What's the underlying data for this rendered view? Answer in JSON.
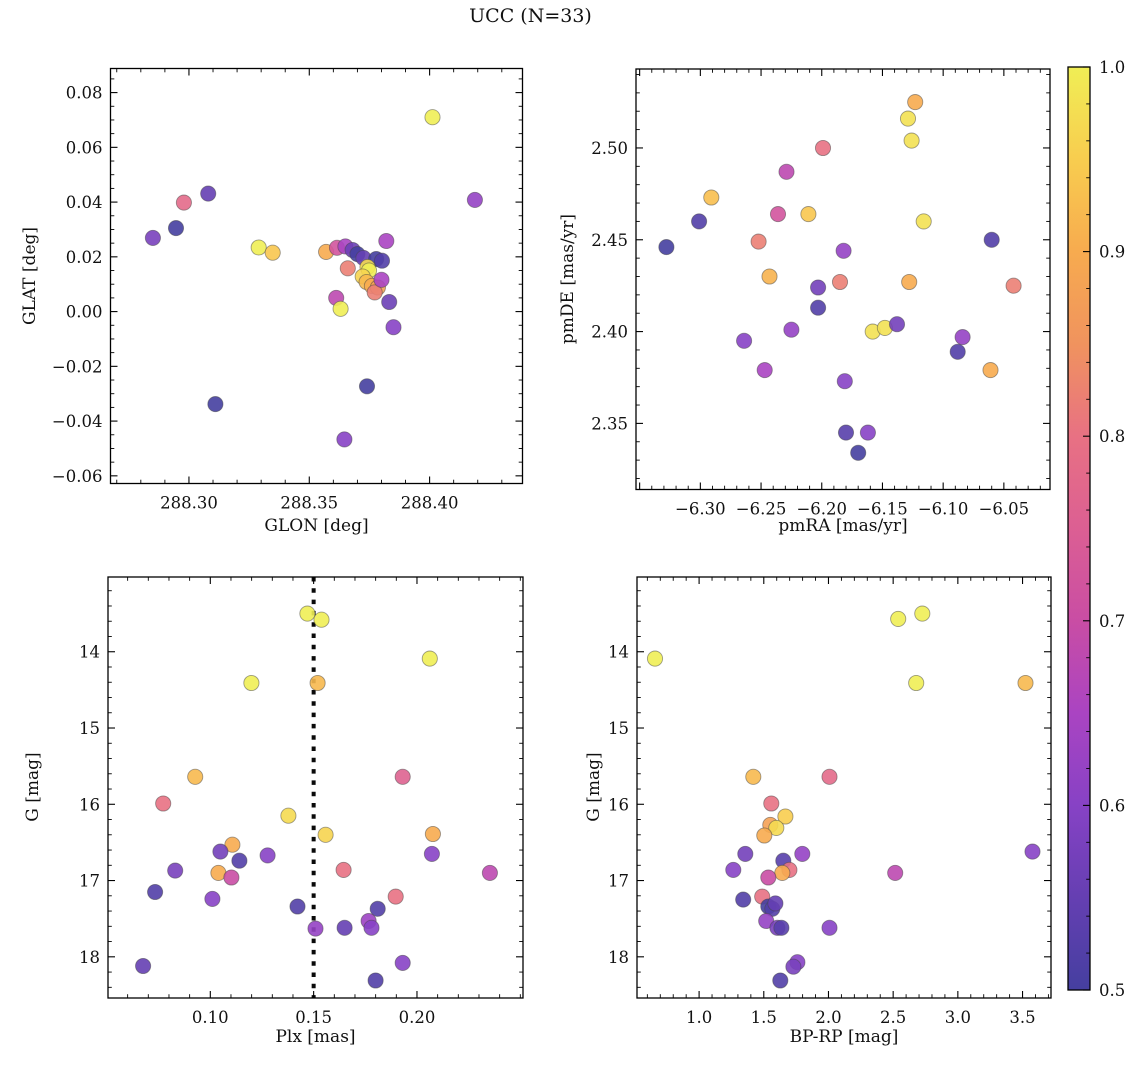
{
  "title": "UCC (N=33)",
  "colorbar": {
    "vmin": 0.5,
    "vmax": 1.0,
    "tick_labels": [
      "1.0",
      "0.9",
      "0.8",
      "0.7",
      "0.6",
      "0.5"
    ],
    "tick_values": [
      1.0,
      0.9,
      0.8,
      0.7,
      0.6,
      0.5
    ],
    "minor_step": 0.02,
    "colormap_stops": [
      {
        "v": 0.5,
        "color": "#453fa0"
      },
      {
        "v": 0.55,
        "color": "#653fb2"
      },
      {
        "v": 0.6,
        "color": "#8742c5"
      },
      {
        "v": 0.65,
        "color": "#aa44c2"
      },
      {
        "v": 0.7,
        "color": "#c94da4"
      },
      {
        "v": 0.75,
        "color": "#dc5f93"
      },
      {
        "v": 0.8,
        "color": "#e87183"
      },
      {
        "v": 0.85,
        "color": "#f0935e"
      },
      {
        "v": 0.9,
        "color": "#f7ab4f"
      },
      {
        "v": 0.95,
        "color": "#f8cd4f"
      },
      {
        "v": 1.0,
        "color": "#f0ee55"
      }
    ]
  },
  "chart_data": [
    {
      "type": "scatter",
      "name": "position",
      "xlabel": "GLON [deg]",
      "ylabel": "GLAT [deg]",
      "xlim": [
        288.2674,
        288.4386
      ],
      "ylim": [
        -0.0628,
        0.0888
      ],
      "invert_y": false,
      "xticks": {
        "values": [
          288.3,
          288.35,
          288.4
        ],
        "labels": [
          "288.30",
          "288.35",
          "288.40"
        ],
        "minor_step": 0.01
      },
      "yticks": {
        "values": [
          -0.06,
          -0.04,
          -0.02,
          0.0,
          0.02,
          0.04,
          0.06,
          0.08
        ],
        "labels": [
          "−0.06",
          "−0.04",
          "−0.02",
          "0.00",
          "0.02",
          "0.04",
          "0.06",
          "0.08"
        ],
        "minor_step": 0.005
      },
      "points": [
        [
          288.285,
          0.0269,
          0.58
        ],
        [
          288.2946,
          0.0305,
          0.5
        ],
        [
          288.2979,
          0.0398,
          0.78
        ],
        [
          288.308,
          0.0431,
          0.55
        ],
        [
          288.311,
          -0.0338,
          0.5
        ],
        [
          288.329,
          0.0234,
          1.0
        ],
        [
          288.3348,
          0.0215,
          0.94
        ],
        [
          288.357,
          0.0218,
          0.9
        ],
        [
          288.3615,
          0.0233,
          0.72
        ],
        [
          288.365,
          0.0238,
          0.65
        ],
        [
          288.368,
          0.0225,
          0.56
        ],
        [
          288.37,
          0.021,
          0.5
        ],
        [
          288.3725,
          0.0196,
          0.55
        ],
        [
          288.3778,
          0.0192,
          0.5
        ],
        [
          288.3802,
          0.0186,
          0.52
        ],
        [
          288.366,
          0.0158,
          0.82
        ],
        [
          288.3742,
          0.0163,
          0.97
        ],
        [
          288.3748,
          0.015,
          1.0
        ],
        [
          288.3722,
          0.0128,
          0.96
        ],
        [
          288.3738,
          0.0108,
          0.92
        ],
        [
          288.376,
          0.0094,
          0.9
        ],
        [
          288.3785,
          0.0088,
          0.88
        ],
        [
          288.3772,
          0.007,
          0.82
        ],
        [
          288.38,
          0.0116,
          0.65
        ],
        [
          288.3832,
          0.0035,
          0.56
        ],
        [
          288.3612,
          0.005,
          0.68
        ],
        [
          288.363,
          0.001,
          1.0
        ],
        [
          288.385,
          -0.0057,
          0.6
        ],
        [
          288.382,
          0.0258,
          0.65
        ],
        [
          288.374,
          -0.0273,
          0.5
        ],
        [
          288.3646,
          -0.0467,
          0.6
        ],
        [
          288.4012,
          0.071,
          1.0
        ],
        [
          288.4188,
          0.0408,
          0.62
        ]
      ]
    },
    {
      "type": "scatter",
      "name": "proper-motion",
      "xlabel": "pmRA [mas/yr]",
      "ylabel": "pmDE [mas/yr]",
      "xlim": [
        -6.353,
        -6.012
      ],
      "ylim": [
        2.314,
        2.543
      ],
      "invert_y": false,
      "xticks": {
        "values": [
          -6.35,
          -6.3,
          -6.25,
          -6.2,
          -6.15,
          -6.1,
          -6.05
        ],
        "labels": [
          "",
          "−6.30",
          "−6.25",
          "−6.20",
          "−6.15",
          "−6.10",
          "−6.05"
        ],
        "minor_step": 0.01
      },
      "yticks": {
        "values": [
          2.35,
          2.4,
          2.45,
          2.5
        ],
        "labels": [
          "2.35",
          "2.40",
          "2.45",
          "2.50"
        ],
        "minor_step": 0.01
      },
      "points": [
        [
          -6.328,
          2.446,
          0.5
        ],
        [
          -6.301,
          2.46,
          0.52
        ],
        [
          -6.291,
          2.473,
          0.93
        ],
        [
          -6.264,
          2.395,
          0.6
        ],
        [
          -6.252,
          2.449,
          0.82
        ],
        [
          -6.247,
          2.379,
          0.65
        ],
        [
          -6.236,
          2.464,
          0.72
        ],
        [
          -6.229,
          2.487,
          0.68
        ],
        [
          -6.243,
          2.43,
          0.91
        ],
        [
          -6.211,
          2.464,
          0.94
        ],
        [
          -6.199,
          2.5,
          0.8
        ],
        [
          -6.203,
          2.424,
          0.57
        ],
        [
          -6.203,
          2.413,
          0.52
        ],
        [
          -6.225,
          2.401,
          0.62
        ],
        [
          -6.182,
          2.444,
          0.62
        ],
        [
          -6.185,
          2.427,
          0.82
        ],
        [
          -6.181,
          2.373,
          0.6
        ],
        [
          -6.18,
          2.345,
          0.53
        ],
        [
          -6.17,
          2.334,
          0.5
        ],
        [
          -6.162,
          2.345,
          0.6
        ],
        [
          -6.158,
          2.4,
          0.98
        ],
        [
          -6.148,
          2.402,
          0.98
        ],
        [
          -6.138,
          2.404,
          0.57
        ],
        [
          -6.123,
          2.525,
          0.9
        ],
        [
          -6.129,
          2.516,
          0.98
        ],
        [
          -6.126,
          2.504,
          0.98
        ],
        [
          -6.116,
          2.46,
          0.98
        ],
        [
          -6.128,
          2.427,
          0.9
        ],
        [
          -6.06,
          2.45,
          0.52
        ],
        [
          -6.084,
          2.397,
          0.62
        ],
        [
          -6.088,
          2.389,
          0.52
        ],
        [
          -6.061,
          2.379,
          0.9
        ],
        [
          -6.042,
          2.425,
          0.82
        ]
      ]
    },
    {
      "type": "scatter",
      "name": "parallax-magnitude",
      "xlabel": "Plx [mas]",
      "ylabel": "G [mag]",
      "xlim": [
        0.0505,
        0.2513
      ],
      "ylim": [
        13.02,
        18.54
      ],
      "invert_y": true,
      "vline": {
        "x": 0.15,
        "style": "dotted"
      },
      "xticks": {
        "values": [
          0.1,
          0.15,
          0.2
        ],
        "labels": [
          "0.10",
          "0.15",
          "0.20"
        ],
        "minor_step": 0.01
      },
      "yticks": {
        "values": [
          14,
          15,
          16,
          17,
          18
        ],
        "labels": [
          "14",
          "15",
          "16",
          "17",
          "18"
        ],
        "minor_step": 0.2
      },
      "points": [
        [
          0.147,
          13.5,
          1.0
        ],
        [
          0.1538,
          13.58,
          1.0
        ],
        [
          0.2062,
          14.09,
          1.0
        ],
        [
          0.1199,
          14.41,
          1.0
        ],
        [
          0.1519,
          14.41,
          0.92
        ],
        [
          0.0927,
          15.64,
          0.92
        ],
        [
          0.0772,
          15.99,
          0.8
        ],
        [
          0.1378,
          16.15,
          0.97
        ],
        [
          0.1558,
          16.4,
          0.96
        ],
        [
          0.1931,
          15.64,
          0.76
        ],
        [
          0.2077,
          16.39,
          0.9
        ],
        [
          0.1107,
          16.53,
          0.9
        ],
        [
          0.1049,
          16.62,
          0.57
        ],
        [
          0.1141,
          16.74,
          0.52
        ],
        [
          0.1277,
          16.67,
          0.6
        ],
        [
          0.2072,
          16.65,
          0.6
        ],
        [
          0.083,
          16.87,
          0.58
        ],
        [
          0.1039,
          16.9,
          0.9
        ],
        [
          0.1102,
          16.96,
          0.7
        ],
        [
          0.1645,
          16.86,
          0.8
        ],
        [
          0.2353,
          16.9,
          0.68
        ],
        [
          0.0733,
          17.15,
          0.52
        ],
        [
          0.101,
          17.24,
          0.6
        ],
        [
          0.1422,
          17.34,
          0.52
        ],
        [
          0.1897,
          17.21,
          0.8
        ],
        [
          0.181,
          17.37,
          0.52
        ],
        [
          0.1509,
          17.63,
          0.62
        ],
        [
          0.165,
          17.62,
          0.55
        ],
        [
          0.1766,
          17.53,
          0.63
        ],
        [
          0.178,
          17.62,
          0.6
        ],
        [
          0.0675,
          18.12,
          0.55
        ],
        [
          0.1931,
          18.08,
          0.6
        ],
        [
          0.18,
          18.31,
          0.52
        ]
      ]
    },
    {
      "type": "scatter",
      "name": "color-magnitude",
      "xlabel": "BP-RP [mag]",
      "ylabel": "G [mag]",
      "xlim": [
        0.52,
        3.72
      ],
      "ylim": [
        13.02,
        18.54
      ],
      "invert_y": true,
      "xticks": {
        "values": [
          1.0,
          1.5,
          2.0,
          2.5,
          3.0,
          3.5
        ],
        "labels": [
          "1.0",
          "1.5",
          "2.0",
          "2.5",
          "3.0",
          "3.5"
        ],
        "minor_step": 0.1
      },
      "yticks": {
        "values": [
          14,
          15,
          16,
          17,
          18
        ],
        "labels": [
          "14",
          "15",
          "16",
          "17",
          "18"
        ],
        "minor_step": 0.2
      },
      "points": [
        [
          0.659,
          14.09,
          1.0
        ],
        [
          2.539,
          13.57,
          1.0
        ],
        [
          2.725,
          13.5,
          1.0
        ],
        [
          2.678,
          14.41,
          1.0
        ],
        [
          3.523,
          14.41,
          0.92
        ],
        [
          1.419,
          15.64,
          0.92
        ],
        [
          2.008,
          15.64,
          0.78
        ],
        [
          1.558,
          15.99,
          0.8
        ],
        [
          1.667,
          16.16,
          0.95
        ],
        [
          1.55,
          16.27,
          0.88
        ],
        [
          1.597,
          16.31,
          0.97
        ],
        [
          1.504,
          16.41,
          0.9
        ],
        [
          1.357,
          16.65,
          0.57
        ],
        [
          1.651,
          16.74,
          0.53
        ],
        [
          1.798,
          16.65,
          0.62
        ],
        [
          3.577,
          16.62,
          0.6
        ],
        [
          1.264,
          16.86,
          0.6
        ],
        [
          1.698,
          16.86,
          0.8
        ],
        [
          1.643,
          16.9,
          0.9
        ],
        [
          1.535,
          16.96,
          0.7
        ],
        [
          2.516,
          16.9,
          0.68
        ],
        [
          1.341,
          17.25,
          0.52
        ],
        [
          1.488,
          17.21,
          0.8
        ],
        [
          1.535,
          17.34,
          0.5
        ],
        [
          1.566,
          17.37,
          0.52
        ],
        [
          1.519,
          17.53,
          0.62
        ],
        [
          1.605,
          17.62,
          0.58
        ],
        [
          1.636,
          17.62,
          0.53
        ],
        [
          2.008,
          17.62,
          0.6
        ],
        [
          1.76,
          18.07,
          0.6
        ],
        [
          1.729,
          18.13,
          0.58
        ],
        [
          1.628,
          18.31,
          0.52
        ],
        [
          1.59,
          17.3,
          0.55
        ]
      ]
    }
  ]
}
